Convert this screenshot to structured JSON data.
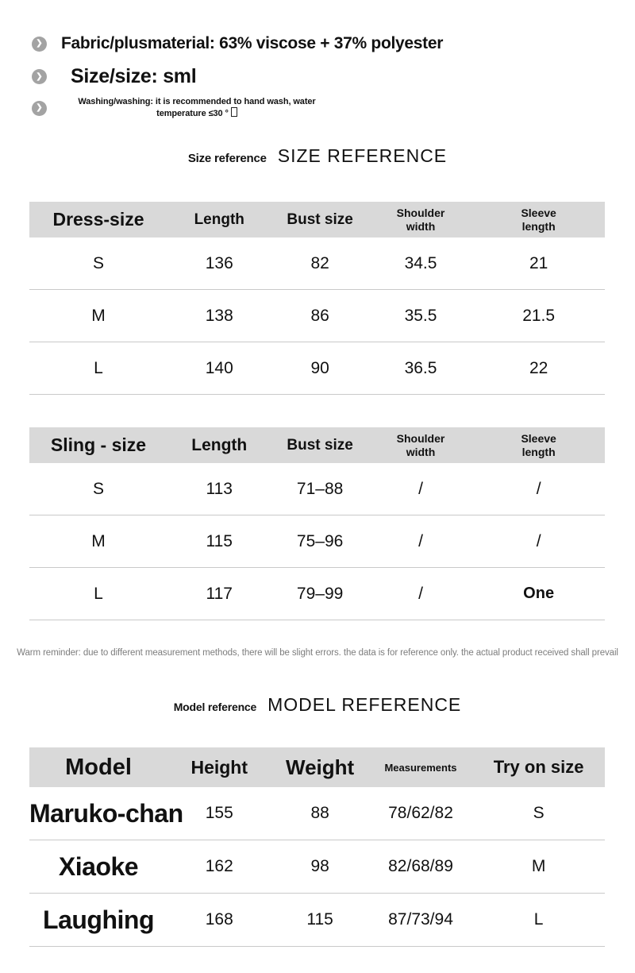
{
  "colors": {
    "table_header_bg": "#d9d9d9",
    "row_separator": "#c9c9c9",
    "reminder_text": "#7d7d7d",
    "bullet_circle": "#a3a3a3"
  },
  "bullets": {
    "icon": "chevron-right-icon",
    "icon_glyph": "❯",
    "fabric": "Fabric/plusmaterial: 63% viscose + 37% polyester",
    "size": "Size/size: sml",
    "washing_line1": "Washing/washing: it is recommended to hand wash, water",
    "washing_line2": "temperature ≤30 °"
  },
  "size_section": {
    "title_small": "Size reference",
    "title_large": "SIZE REFERENCE"
  },
  "dress_table": {
    "headers": [
      "Dress-size",
      "Length",
      "Bust size",
      "Shoulder\nwidth",
      "Sleeve\nlength"
    ],
    "rows": [
      [
        "S",
        "136",
        "82",
        "34.5",
        "21"
      ],
      [
        "M",
        "138",
        "86",
        "35.5",
        "21.5"
      ],
      [
        "L",
        "140",
        "90",
        "36.5",
        "22"
      ]
    ]
  },
  "sling_table": {
    "headers": [
      "Sling - size",
      "Length",
      "Bust size",
      "Shoulder\nwidth",
      "Sleeve\nlength"
    ],
    "rows": [
      [
        "S",
        "113",
        "71–88",
        "/",
        "/"
      ],
      [
        "M",
        "115",
        "75–96",
        "/",
        "/"
      ],
      [
        "L",
        "117",
        "79–99",
        "/",
        "One"
      ]
    ]
  },
  "reminder": "Warm reminder: due to different measurement methods, there will be slight errors. the data is for reference only. the actual product received shall prevail",
  "model_section": {
    "title_small": "Model reference",
    "title_large": "MODEL REFERENCE"
  },
  "model_table": {
    "headers": [
      "Model",
      "Height",
      "Weight",
      "Measurements",
      "Try on size"
    ],
    "rows": [
      [
        "Maruko-chan",
        "155",
        "88",
        "78/62/82",
        "S"
      ],
      [
        "Xiaoke",
        "162",
        "98",
        "82/68/89",
        "M"
      ],
      [
        "Laughing",
        "168",
        "115",
        "87/73/94",
        "L"
      ]
    ]
  }
}
